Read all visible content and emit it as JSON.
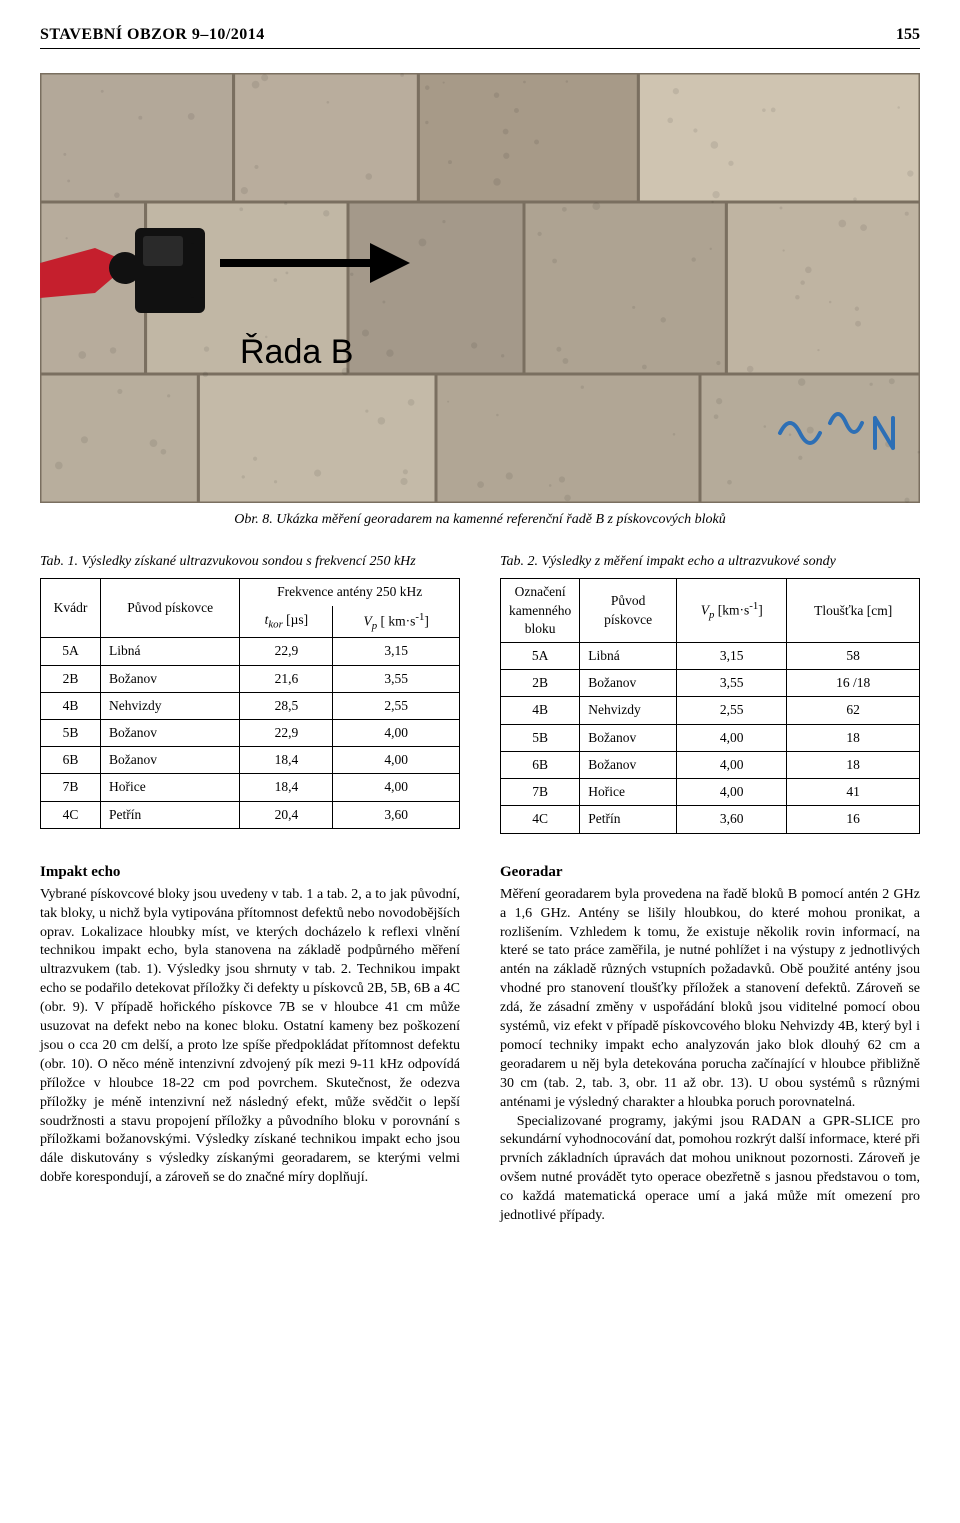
{
  "header": {
    "title": "STAVEBNÍ OBZOR 9–10/2014",
    "page": "155"
  },
  "figure": {
    "caption": "Obr. 8. Ukázka měření georadarem na kamenné referenční řadě B z pískovcových bloků",
    "row_label": "Řada B",
    "blocks": {
      "rows": 3,
      "row_heights": [
        0.3,
        0.4,
        0.3
      ],
      "col_splits": [
        [
          0.22,
          0.43,
          0.68,
          1.0
        ],
        [
          0.12,
          0.35,
          0.55,
          0.78,
          1.0
        ],
        [
          0.18,
          0.45,
          0.75,
          1.0
        ]
      ],
      "fills": [
        [
          "#b3a899",
          "#b9ad9d",
          "#a79a88",
          "#cfc4b1"
        ],
        [
          "#b7ac9c",
          "#c1b7a5",
          "#a4998a",
          "#aea392",
          "#bfb4a2"
        ],
        [
          "#b8ae9d",
          "#c4baa8",
          "#b1a695",
          "#b5ab9a"
        ]
      ],
      "joint_color": "#7a6f60",
      "graffiti_color": "#2d6fb5"
    },
    "device": {
      "body_color": "#111111",
      "screen_color": "#2a2a2a",
      "arm_sleeve_color": "#c51f2d",
      "glove_color": "#111111"
    },
    "arrow": {
      "stroke": "#000000",
      "width": 8
    }
  },
  "table1": {
    "caption": "Tab. 1. Výsledky získané ultrazvukovou sondou s frekvencí 250 kHz",
    "head": {
      "col1": "Kvádr",
      "col2": "Původ pískovce",
      "span": "Frekvence antény 250 kHz",
      "sub1_pre": "t",
      "sub1_sub": "kor",
      "sub1_unit": " [µs]",
      "sub2_pre": "V",
      "sub2_sub": "p",
      "sub2_unit": " [ km·s",
      "sub2_sup": "-1",
      "sub2_tail": "]"
    },
    "rows": [
      {
        "k": "5A",
        "origin": "Libná",
        "t": "22,9",
        "v": "3,15"
      },
      {
        "k": "2B",
        "origin": "Božanov",
        "t": "21,6",
        "v": "3,55"
      },
      {
        "k": "4B",
        "origin": "Nehvizdy",
        "t": "28,5",
        "v": "2,55"
      },
      {
        "k": "5B",
        "origin": "Božanov",
        "t": "22,9",
        "v": "4,00"
      },
      {
        "k": "6B",
        "origin": "Božanov",
        "t": "18,4",
        "v": "4,00"
      },
      {
        "k": "7B",
        "origin": "Hořice",
        "t": "18,4",
        "v": "4,00"
      },
      {
        "k": "4C",
        "origin": "Petřín",
        "t": "20,4",
        "v": "3,60"
      }
    ]
  },
  "table2": {
    "caption": "Tab. 2. Výsledky z měření impakt echo a ultrazvukové sondy",
    "head": {
      "col1_l1": "Označení",
      "col1_l2": "kamenného",
      "col1_l3": "bloku",
      "col2_l1": "Původ",
      "col2_l2": "pískovce",
      "col3_pre": "V",
      "col3_sub": "p",
      "col3_unit": " [km·s",
      "col3_sup": "-1",
      "col3_tail": "]",
      "col4": "Tloušťka [cm]"
    },
    "rows": [
      {
        "k": "5A",
        "origin": "Libná",
        "v": "3,15",
        "th": "58"
      },
      {
        "k": "2B",
        "origin": "Božanov",
        "v": "3,55",
        "th": "16 /18"
      },
      {
        "k": "4B",
        "origin": "Nehvizdy",
        "v": "2,55",
        "th": "62"
      },
      {
        "k": "5B",
        "origin": "Božanov",
        "v": "4,00",
        "th": "18"
      },
      {
        "k": "6B",
        "origin": "Božanov",
        "v": "4,00",
        "th": "18"
      },
      {
        "k": "7B",
        "origin": "Hořice",
        "v": "4,00",
        "th": "41"
      },
      {
        "k": "4C",
        "origin": "Petřín",
        "v": "3,60",
        "th": "16"
      }
    ]
  },
  "left_column": {
    "heading": "Impakt echo",
    "para1": "Vybrané pískovcové bloky jsou uvedeny v tab. 1 a tab. 2, a to jak původní, tak bloky, u nichž byla vytipována přítomnost defektů nebo novodobějších oprav. Lokalizace hloubky míst, ve kterých docházelo k reflexi vlnění technikou impakt echo, byla stanovena na základě podpůrného měření ultrazvukem (tab. 1). Výsledky jsou shrnuty v tab. 2. Technikou impakt echo se podařilo detekovat příložky či defekty u pískovců 2B, 5B, 6B a 4C (obr. 9). V případě hořického pískovce 7B se v hloubce 41 cm může usuzovat na defekt nebo na konec bloku. Ostatní kameny bez poškození jsou o cca 20 cm delší, a proto lze spíše předpokládat přítomnost defektu (obr. 10). O něco méně intenzivní zdvojený pík mezi 9-11 kHz odpovídá příložce v hloubce 18-22 cm pod povrchem. Skutečnost, že odezva příložky je méně intenzivní než následný efekt, může svědčit o lepší soudržnosti a stavu propojení příložky a původního bloku v porovnání s příložkami božanovskými. Výsledky získané technikou impakt echo jsou dále diskutovány s výsledky získanými georadarem, se kterými velmi dobře korespondují, a zároveň se do značné míry doplňují."
  },
  "right_column": {
    "heading": "Georadar",
    "para1": "Měření georadarem byla provedena na řadě bloků B pomocí antén 2 GHz a 1,6 GHz. Antény se lišily hloubkou, do které mohou pronikat, a rozlišením. Vzhledem k tomu, že existuje několik rovin informací, na které se tato práce zaměřila, je nutné pohlížet i na výstupy z jednotlivých antén na základě různých vstupních požadavků. Obě použité antény jsou vhodné pro stanovení tloušťky příložek a stanovení defektů. Zároveň se zdá, že zásadní změny v uspořádání bloků jsou viditelné pomocí obou systémů, viz efekt v případě pískovcového bloku Nehvizdy 4B, který byl i pomocí techniky impakt echo analyzován jako blok dlouhý 62 cm a georadarem u něj byla detekována porucha začínající v hloubce přibližně 30 cm (tab. 2, tab. 3, obr. 11 až obr. 13). U obou systémů s různými anténami je výsledný charakter a hloubka poruch porovnatelná.",
    "para2": "Specializované programy, jakými jsou RADAN a GPR-SLICE pro sekundární vyhodnocování dat, pomohou rozkrýt další informace, které při prvních základních úpravách dat mohou uniknout pozornosti. Zároveň je ovšem nutné provádět tyto operace obezřetně s jasnou představou o tom, co každá matematická operace umí a jaká může mít omezení pro jednotlivé případy."
  }
}
